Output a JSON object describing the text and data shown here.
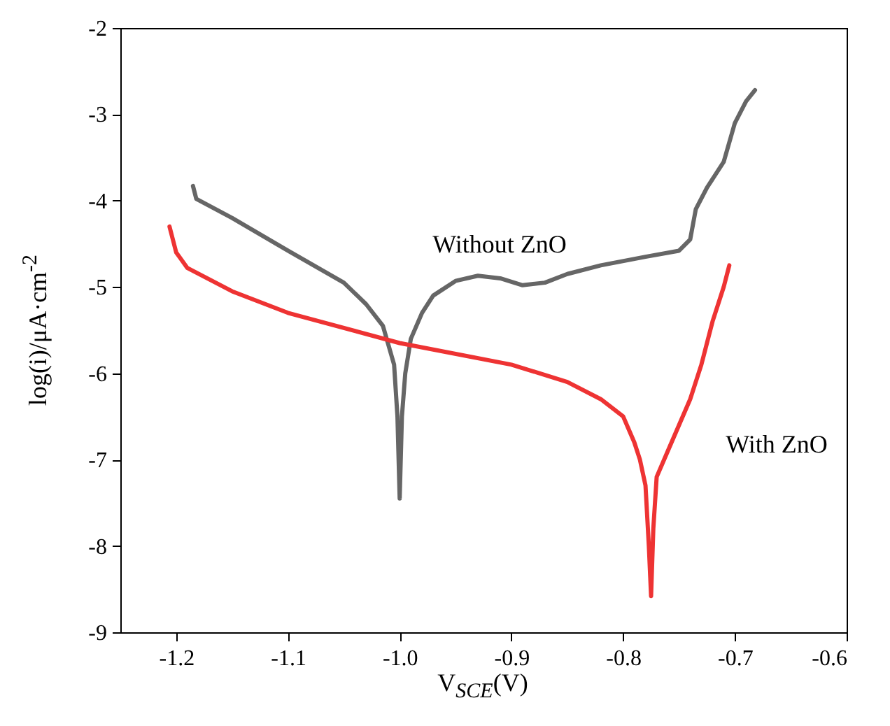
{
  "chart_data": {
    "type": "line",
    "xlabel": "V$_{SCE}$(V)",
    "ylabel": "log(i)/μA·cm$^{-2}$",
    "xlim": [
      -1.25,
      -0.6
    ],
    "xticks": [
      -1.2,
      -1.1,
      {
        "value": -1.0,
        "label": "-1.0"
      },
      -0.9,
      -0.8,
      -0.7,
      -0.6
    ],
    "ylim": [
      -9,
      -2
    ],
    "yticks": [
      -9,
      -8,
      -7,
      -6,
      -5,
      -4,
      -3,
      -2
    ],
    "grid": false,
    "marker": "none",
    "line_style": "solid",
    "annotations": [
      "Without ZnO",
      "With ZnO"
    ],
    "series": [
      {
        "color": "#666666",
        "x": [
          -1.185,
          -1.182,
          -1.15,
          -1.1,
          -1.05,
          -1.03,
          -1.015,
          -1.005,
          -1.002,
          -1.0,
          -0.998,
          -0.995,
          -0.99,
          -0.98,
          -0.97,
          -0.95,
          -0.93,
          -0.91,
          -0.89,
          -0.87,
          -0.85,
          -0.82,
          -0.78,
          -0.75,
          -0.74,
          -0.735,
          -0.725,
          -0.71,
          -0.7,
          -0.69,
          -0.682
        ],
        "values": [
          -3.83,
          -3.98,
          -4.2,
          -4.58,
          -4.95,
          -5.2,
          -5.45,
          -5.9,
          -6.5,
          -7.45,
          -6.5,
          -6.0,
          -5.6,
          -5.3,
          -5.1,
          -4.93,
          -4.87,
          -4.9,
          -4.98,
          -4.95,
          -4.85,
          -4.75,
          -4.65,
          -4.58,
          -4.45,
          -4.1,
          -3.85,
          -3.55,
          -3.1,
          -2.85,
          -2.72
        ]
      },
      {
        "color": "#ee3333",
        "x": [
          -1.206,
          -1.2,
          -1.19,
          -1.15,
          -1.1,
          -1.0,
          -0.9,
          -0.85,
          -0.82,
          -0.8,
          -0.79,
          -0.785,
          -0.78,
          -0.777,
          -0.775,
          -0.773,
          -0.77,
          -0.76,
          -0.75,
          -0.74,
          -0.73,
          -0.72,
          -0.71,
          -0.705
        ],
        "values": [
          -4.3,
          -4.6,
          -4.78,
          -5.05,
          -5.3,
          -5.65,
          -5.9,
          -6.1,
          -6.3,
          -6.5,
          -6.8,
          -7.0,
          -7.3,
          -8.0,
          -8.58,
          -7.8,
          -7.2,
          -6.9,
          -6.6,
          -6.3,
          -5.9,
          -5.4,
          -5.0,
          -4.75
        ]
      }
    ]
  }
}
